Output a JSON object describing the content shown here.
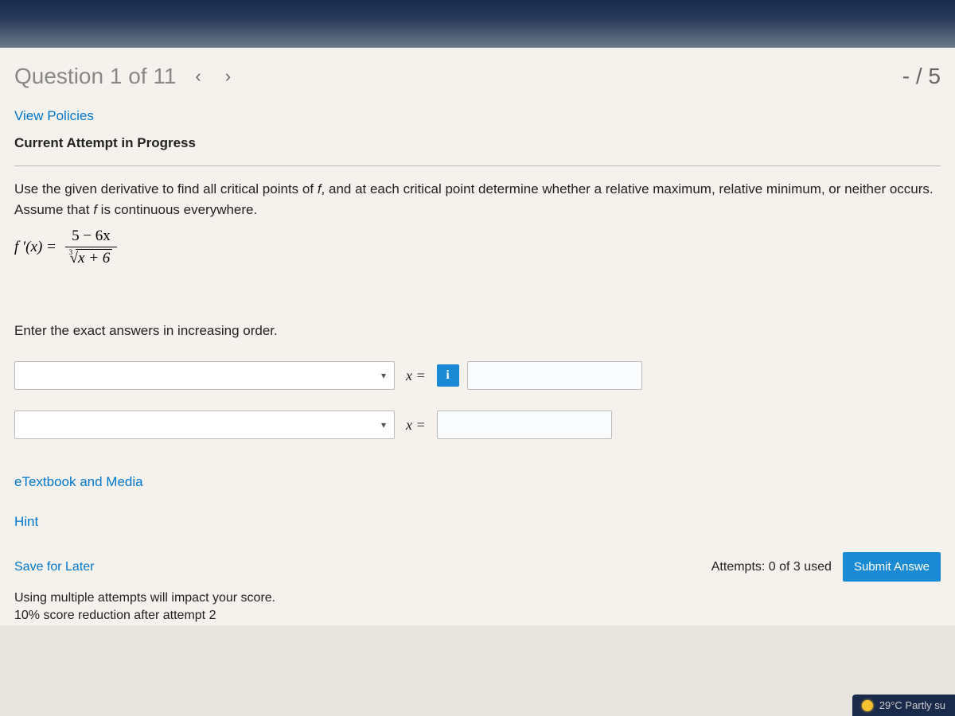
{
  "header": {
    "question_label": "Question 1 of 11",
    "prev_arrow": "‹",
    "next_arrow": "›",
    "score": "- / 5"
  },
  "links": {
    "view_policies": "View Policies",
    "etextbook": "eTextbook and Media",
    "hint": "Hint",
    "save_later": "Save for Later"
  },
  "status": {
    "attempt": "Current Attempt in Progress"
  },
  "question": {
    "prompt_part1": "Use the given derivative to find all critical points of ",
    "prompt_part2": ", and at each critical point determine whether a relative maximum, relative minimum, or neither occurs. Assume that ",
    "prompt_part3": " is continuous everywhere.",
    "func_symbol": "f",
    "fprime_lhs": "f ′(x) =",
    "numerator": "5 − 6x",
    "root_index": "3",
    "radical_sym": "√",
    "radicand": "x + 6",
    "instructions": "Enter the exact answers in increasing order.",
    "x_equals": "x ="
  },
  "info_icon": "i",
  "footer": {
    "attempts": "Attempts: 0 of 3 used",
    "submit_label": "Submit Answe",
    "note1": "Using multiple attempts will impact your score.",
    "note2": "10% score reduction after attempt 2"
  },
  "taskbar": {
    "weather": "29°C  Partly su"
  }
}
